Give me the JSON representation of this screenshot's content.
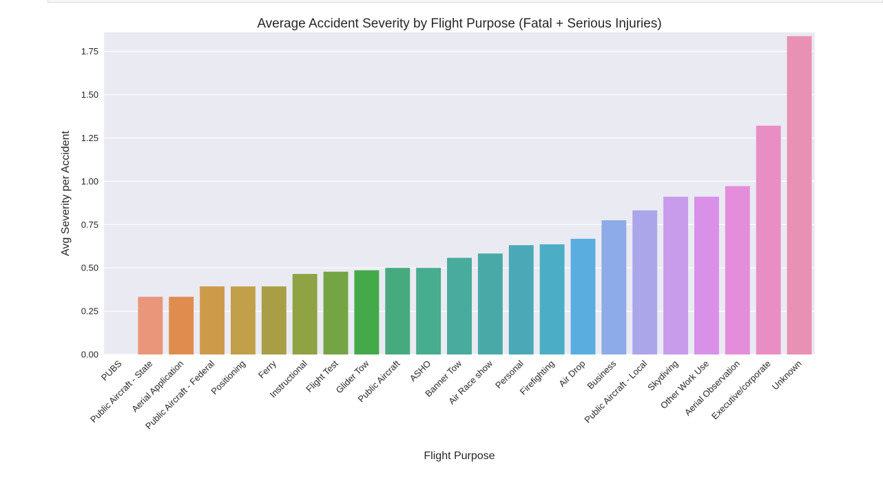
{
  "chart_data": {
    "type": "bar",
    "title": "Average Accident Severity by Flight Purpose (Fatal + Serious Injuries)",
    "xlabel": "Flight Purpose",
    "ylabel": "Avg Severity per Accident",
    "ylim": [
      0,
      1.86
    ],
    "yticks": [
      "0.00",
      "0.25",
      "0.50",
      "0.75",
      "1.00",
      "1.25",
      "1.50",
      "1.75"
    ],
    "grid": true,
    "legend": "none",
    "categories": [
      "PUBS",
      "Public Aircraft - State",
      "Aerial Application",
      "Public Aircraft - Federal",
      "Positioning",
      "Ferry",
      "Instructional",
      "Flight Test",
      "Glider Tow",
      "Public Aircraft",
      "ASHO",
      "Banner Tow",
      "Air Race show",
      "Personal",
      "Firefighting",
      "Air Drop",
      "Business",
      "Public Aircraft - Local",
      "Skydiving",
      "Other Work Use",
      "Aerial Observation",
      "Executive/corporate",
      "Unknown"
    ],
    "values": [
      0.0,
      0.333,
      0.333,
      0.393,
      0.393,
      0.393,
      0.465,
      0.478,
      0.486,
      0.5,
      0.5,
      0.558,
      0.583,
      0.631,
      0.636,
      0.668,
      0.775,
      0.832,
      0.911,
      0.911,
      0.972,
      1.321,
      1.838
    ],
    "colors": [
      "#e9967a",
      "#e9967a",
      "#df8c4e",
      "#cd9a4a",
      "#c1a049",
      "#a89e46",
      "#8fa344",
      "#75a444",
      "#44a949",
      "#45ab7e",
      "#48ad8e",
      "#48ab9d",
      "#49a9a7",
      "#4aa8b7",
      "#4caec6",
      "#59addf",
      "#8dabe8",
      "#aba5ea",
      "#c89ceb",
      "#d990e9",
      "#e48ddb",
      "#e98ec4",
      "#e891b5"
    ]
  }
}
